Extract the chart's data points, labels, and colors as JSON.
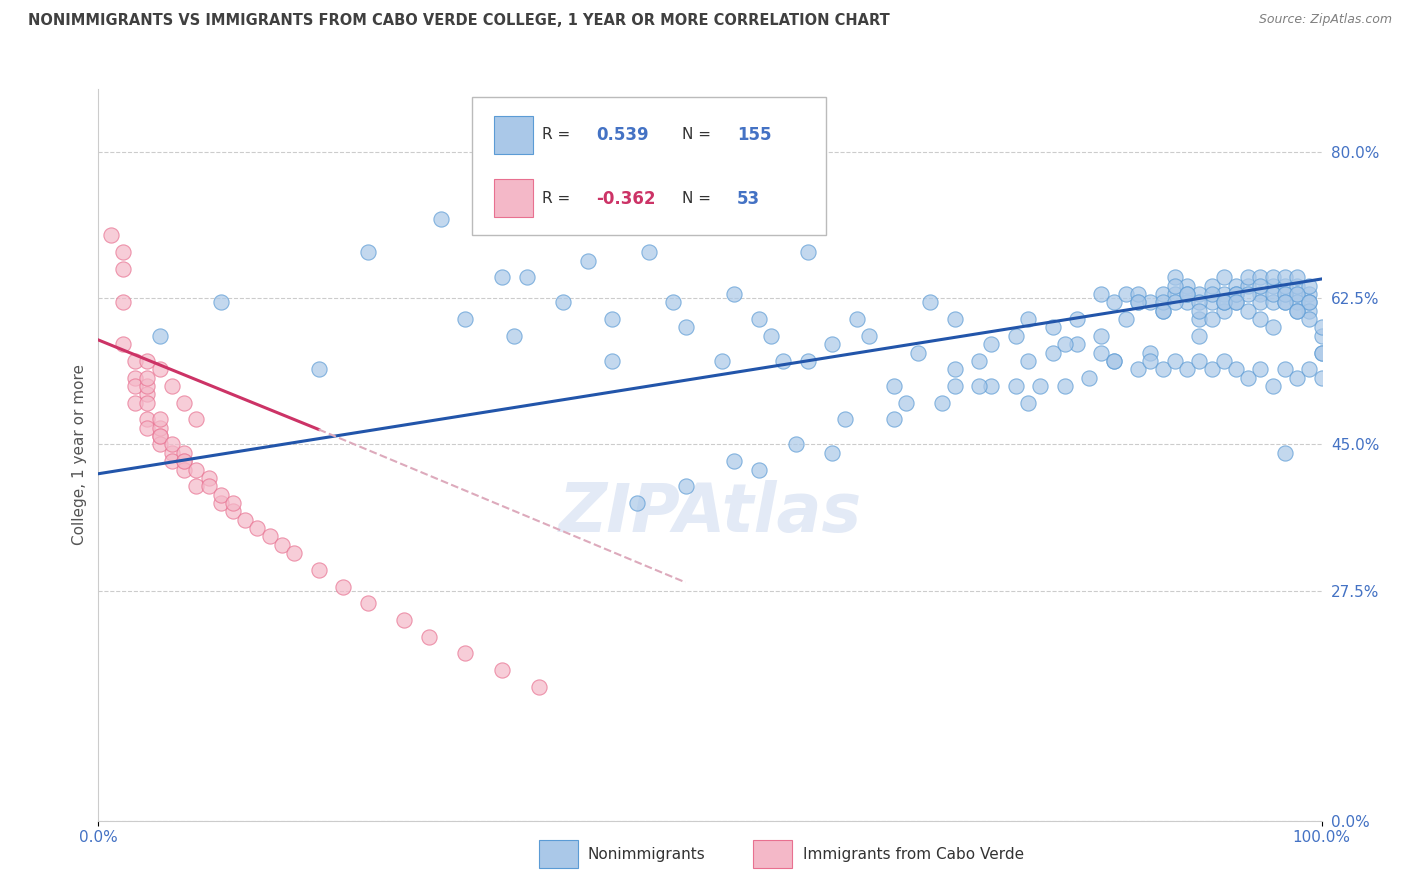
{
  "title": "NONIMMIGRANTS VS IMMIGRANTS FROM CABO VERDE COLLEGE, 1 YEAR OR MORE CORRELATION CHART",
  "source": "Source: ZipAtlas.com",
  "ylabel": "College, 1 year or more",
  "xlim": [
    0.0,
    1.0
  ],
  "ylim": [
    0.0,
    0.875
  ],
  "yticks": [
    0.0,
    0.275,
    0.45,
    0.625,
    0.8
  ],
  "ytick_labels": [
    "0.0%",
    "27.5%",
    "45.0%",
    "62.5%",
    "80.0%"
  ],
  "xtick_labels": [
    "0.0%",
    "100.0%"
  ],
  "grid_color": "#cccccc",
  "background_color": "#ffffff",
  "blue_color": "#aac8e8",
  "pink_color": "#f4b8c8",
  "blue_edge_color": "#5b9bd5",
  "pink_edge_color": "#e87090",
  "blue_line_color": "#2255aa",
  "pink_line_color": "#cc3366",
  "pink_dash_color": "#ddaabc",
  "axis_label_color": "#4472c4",
  "title_color": "#404040",
  "source_color": "#808080",
  "nonimmigrants_x": [
    0.05,
    0.1,
    0.22,
    0.18,
    0.3,
    0.35,
    0.34,
    0.38,
    0.4,
    0.42,
    0.45,
    0.47,
    0.5,
    0.52,
    0.48,
    0.55,
    0.58,
    0.56,
    0.6,
    0.62,
    0.65,
    0.68,
    0.7,
    0.72,
    0.75,
    0.76,
    0.78,
    0.8,
    0.82,
    0.83,
    0.84,
    0.85,
    0.86,
    0.87,
    0.87,
    0.88,
    0.88,
    0.89,
    0.89,
    0.9,
    0.9,
    0.9,
    0.91,
    0.91,
    0.92,
    0.92,
    0.92,
    0.93,
    0.93,
    0.93,
    0.94,
    0.94,
    0.95,
    0.95,
    0.95,
    0.96,
    0.96,
    0.96,
    0.97,
    0.97,
    0.97,
    0.97,
    0.98,
    0.98,
    0.98,
    0.98,
    0.99,
    0.99,
    0.99,
    0.99,
    1.0,
    1.0,
    1.0,
    0.28,
    0.33,
    0.42,
    0.51,
    0.54,
    0.58,
    0.63,
    0.67,
    0.7,
    0.73,
    0.76,
    0.78,
    0.8,
    0.82,
    0.83,
    0.84,
    0.85,
    0.86,
    0.87,
    0.88,
    0.88,
    0.89,
    0.9,
    0.91,
    0.92,
    0.93,
    0.94,
    0.95,
    0.96,
    0.97,
    0.98,
    0.54,
    0.6,
    0.66,
    0.7,
    0.73,
    0.76,
    0.79,
    0.82,
    0.85,
    0.87,
    0.89,
    0.9,
    0.91,
    0.92,
    0.93,
    0.94,
    0.95,
    0.96,
    0.97,
    0.98,
    0.99,
    1.0,
    0.44,
    0.48,
    0.52,
    0.57,
    0.61,
    0.65,
    0.69,
    0.72,
    0.75,
    0.77,
    0.79,
    0.81,
    0.83,
    0.85,
    0.86,
    0.87,
    0.88,
    0.89,
    0.9,
    0.91,
    0.92,
    0.93,
    0.94,
    0.95,
    0.96,
    0.97,
    0.98,
    0.99,
    1.0,
    0.99,
    0.98,
    0.97
  ],
  "nonimmigrants_y": [
    0.58,
    0.62,
    0.68,
    0.54,
    0.6,
    0.65,
    0.58,
    0.62,
    0.67,
    0.6,
    0.68,
    0.62,
    0.73,
    0.63,
    0.59,
    0.58,
    0.68,
    0.55,
    0.57,
    0.6,
    0.52,
    0.62,
    0.54,
    0.55,
    0.58,
    0.5,
    0.56,
    0.57,
    0.58,
    0.55,
    0.6,
    0.62,
    0.56,
    0.63,
    0.61,
    0.65,
    0.63,
    0.62,
    0.64,
    0.6,
    0.63,
    0.58,
    0.64,
    0.62,
    0.63,
    0.61,
    0.65,
    0.64,
    0.62,
    0.63,
    0.64,
    0.65,
    0.63,
    0.62,
    0.65,
    0.64,
    0.62,
    0.65,
    0.63,
    0.64,
    0.62,
    0.65,
    0.63,
    0.64,
    0.62,
    0.65,
    0.63,
    0.64,
    0.62,
    0.61,
    0.58,
    0.59,
    0.56,
    0.72,
    0.65,
    0.55,
    0.55,
    0.6,
    0.55,
    0.58,
    0.56,
    0.6,
    0.57,
    0.6,
    0.59,
    0.6,
    0.63,
    0.62,
    0.63,
    0.63,
    0.62,
    0.62,
    0.64,
    0.62,
    0.63,
    0.62,
    0.63,
    0.62,
    0.63,
    0.63,
    0.64,
    0.63,
    0.63,
    0.63,
    0.42,
    0.44,
    0.5,
    0.52,
    0.52,
    0.55,
    0.57,
    0.56,
    0.62,
    0.61,
    0.63,
    0.61,
    0.6,
    0.62,
    0.62,
    0.61,
    0.6,
    0.59,
    0.62,
    0.61,
    0.6,
    0.56,
    0.38,
    0.4,
    0.43,
    0.45,
    0.48,
    0.48,
    0.5,
    0.52,
    0.52,
    0.52,
    0.52,
    0.53,
    0.55,
    0.54,
    0.55,
    0.54,
    0.55,
    0.54,
    0.55,
    0.54,
    0.55,
    0.54,
    0.53,
    0.54,
    0.52,
    0.54,
    0.53,
    0.54,
    0.53,
    0.62,
    0.61,
    0.44
  ],
  "cabo_x": [
    0.01,
    0.02,
    0.02,
    0.02,
    0.02,
    0.03,
    0.03,
    0.03,
    0.03,
    0.04,
    0.04,
    0.04,
    0.04,
    0.04,
    0.04,
    0.05,
    0.05,
    0.05,
    0.05,
    0.05,
    0.06,
    0.06,
    0.06,
    0.07,
    0.07,
    0.07,
    0.07,
    0.08,
    0.08,
    0.09,
    0.09,
    0.1,
    0.1,
    0.11,
    0.11,
    0.12,
    0.13,
    0.14,
    0.15,
    0.16,
    0.18,
    0.2,
    0.22,
    0.25,
    0.27,
    0.3,
    0.33,
    0.36,
    0.04,
    0.05,
    0.06,
    0.07,
    0.08
  ],
  "cabo_y": [
    0.7,
    0.66,
    0.68,
    0.62,
    0.57,
    0.53,
    0.52,
    0.5,
    0.55,
    0.51,
    0.5,
    0.52,
    0.48,
    0.47,
    0.53,
    0.46,
    0.47,
    0.48,
    0.45,
    0.46,
    0.44,
    0.45,
    0.43,
    0.43,
    0.42,
    0.44,
    0.43,
    0.42,
    0.4,
    0.41,
    0.4,
    0.38,
    0.39,
    0.37,
    0.38,
    0.36,
    0.35,
    0.34,
    0.33,
    0.32,
    0.3,
    0.28,
    0.26,
    0.24,
    0.22,
    0.2,
    0.18,
    0.16,
    0.55,
    0.54,
    0.52,
    0.5,
    0.48
  ],
  "nonimm_trend_x0": 0.0,
  "nonimm_trend_x1": 1.0,
  "nonimm_trend_y0": 0.415,
  "nonimm_trend_y1": 0.648,
  "cabo_trend_x0": 0.0,
  "cabo_trend_x1_solid": 0.18,
  "cabo_trend_y0": 0.575,
  "cabo_trend_y1_solid": 0.468,
  "cabo_trend_x1_dash": 0.48,
  "cabo_trend_y1_dash": 0.285
}
